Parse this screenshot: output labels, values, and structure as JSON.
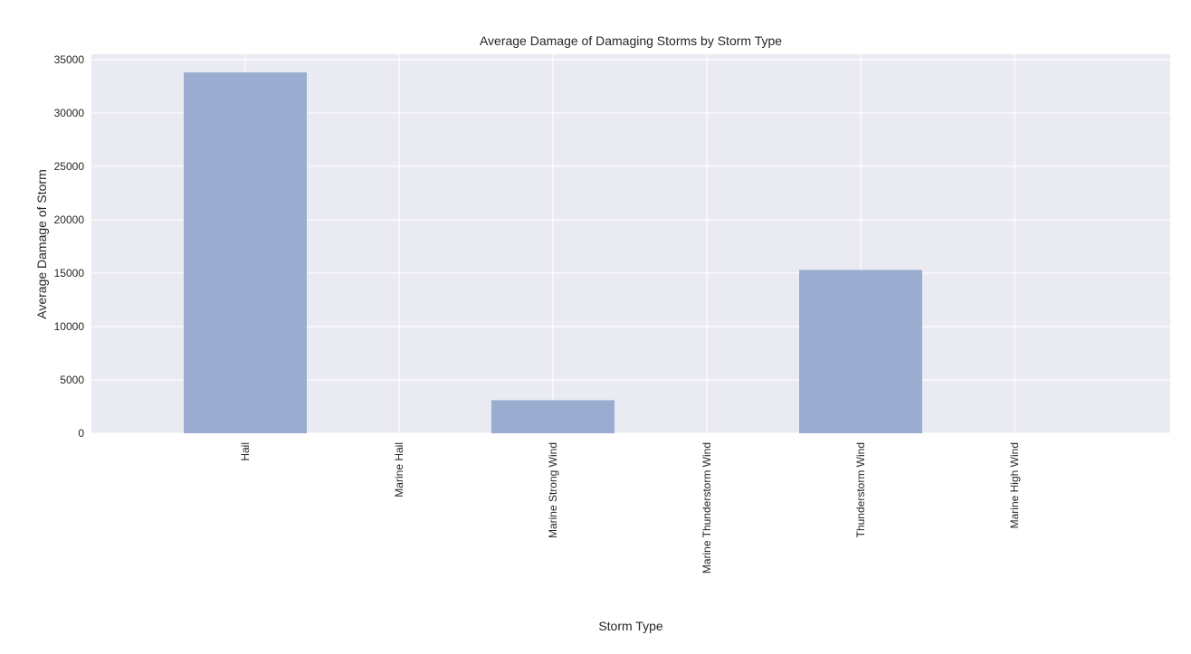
{
  "chart_data": {
    "type": "bar",
    "title": "Average Damage of Damaging Storms by Storm Type",
    "xlabel": "Storm Type",
    "ylabel": "Average Damage of Storm",
    "categories": [
      "Hail",
      "Marine Hail",
      "Marine Strong Wind",
      "Marine Thunderstorm Wind",
      "Thunderstorm Wind",
      "Marine High Wind"
    ],
    "values": [
      33800,
      0,
      3100,
      0,
      15300,
      0
    ],
    "ylim": [
      0,
      35500
    ],
    "yticks": [
      0,
      5000,
      10000,
      15000,
      20000,
      25000,
      30000,
      35000
    ],
    "grid": true,
    "legend": "none",
    "colors": {
      "bar": "#9aadd0",
      "background": "#eaeaf2",
      "grid": "#ffffff"
    }
  }
}
